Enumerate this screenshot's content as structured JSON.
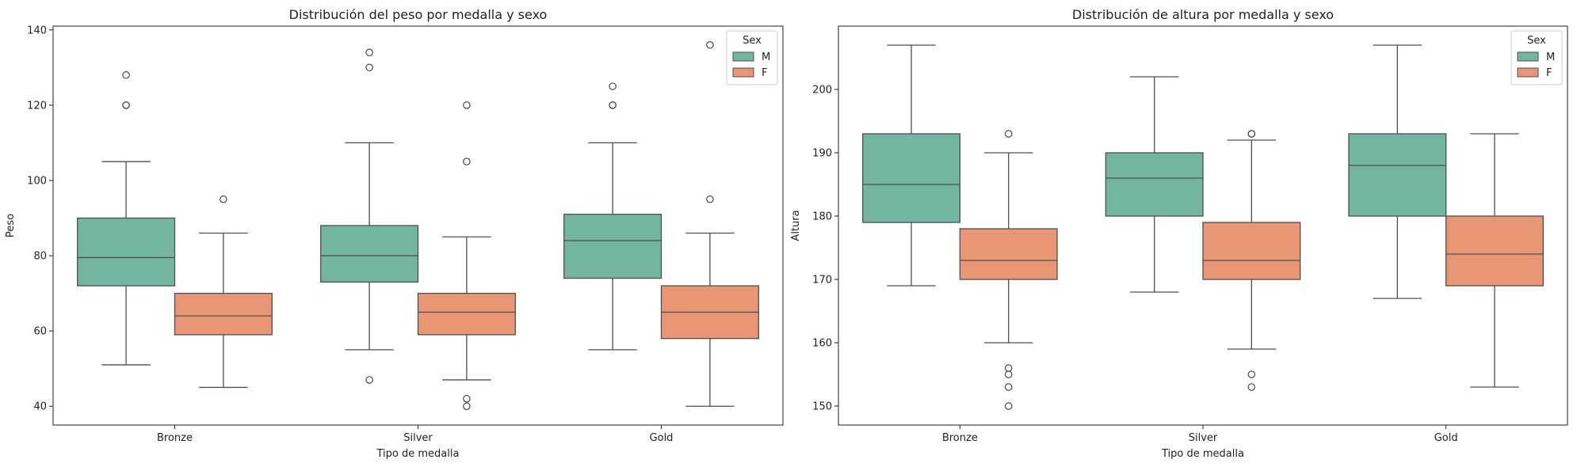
{
  "colors": {
    "male": "#72b6a1",
    "female": "#e99675",
    "line": "#4f4f4f",
    "frame": "#222222"
  },
  "chart_data": [
    {
      "type": "box",
      "title": "Distribución del peso por medalla y sexo",
      "xlabel": "Tipo de medalla",
      "ylabel": "Peso",
      "categories": [
        "Bronze",
        "Silver",
        "Gold"
      ],
      "ylim": [
        35,
        141
      ],
      "yticks": [
        40,
        60,
        80,
        100,
        120,
        140
      ],
      "legend": {
        "title": "Sex",
        "position": "top-right",
        "entries": [
          "M",
          "F"
        ]
      },
      "series": [
        {
          "name": "M",
          "boxes": [
            {
              "category": "Bronze",
              "whisker_low": 51,
              "q1": 72,
              "median": 79.5,
              "q3": 90,
              "whisker_high": 105,
              "outliers": [
                120,
                120,
                128
              ]
            },
            {
              "category": "Silver",
              "whisker_low": 55,
              "q1": 73,
              "median": 80,
              "q3": 88,
              "whisker_high": 110,
              "outliers": [
                47,
                130,
                134
              ]
            },
            {
              "category": "Gold",
              "whisker_low": 55,
              "q1": 74,
              "median": 84,
              "q3": 91,
              "whisker_high": 110,
              "outliers": [
                120,
                120,
                125
              ]
            }
          ]
        },
        {
          "name": "F",
          "boxes": [
            {
              "category": "Bronze",
              "whisker_low": 45,
              "q1": 59,
              "median": 64,
              "q3": 70,
              "whisker_high": 86,
              "outliers": [
                95
              ]
            },
            {
              "category": "Silver",
              "whisker_low": 47,
              "q1": 59,
              "median": 65,
              "q3": 70,
              "whisker_high": 85,
              "outliers": [
                40,
                42,
                105,
                120
              ]
            },
            {
              "category": "Gold",
              "whisker_low": 40,
              "q1": 58,
              "median": 65,
              "q3": 72,
              "whisker_high": 86,
              "outliers": [
                95,
                136
              ]
            }
          ]
        }
      ]
    },
    {
      "type": "box",
      "title": "Distribución de altura por medalla y sexo",
      "xlabel": "Tipo de medalla",
      "ylabel": "Altura",
      "categories": [
        "Bronze",
        "Silver",
        "Gold"
      ],
      "ylim": [
        147,
        210
      ],
      "yticks": [
        150,
        160,
        170,
        180,
        190,
        200
      ],
      "legend": {
        "title": "Sex",
        "position": "top-right",
        "entries": [
          "M",
          "F"
        ]
      },
      "series": [
        {
          "name": "M",
          "boxes": [
            {
              "category": "Bronze",
              "whisker_low": 169,
              "q1": 179,
              "median": 185,
              "q3": 193,
              "whisker_high": 207,
              "outliers": []
            },
            {
              "category": "Silver",
              "whisker_low": 168,
              "q1": 180,
              "median": 186,
              "q3": 190,
              "whisker_high": 202,
              "outliers": []
            },
            {
              "category": "Gold",
              "whisker_low": 167,
              "q1": 180,
              "median": 188,
              "q3": 193,
              "whisker_high": 207,
              "outliers": []
            }
          ]
        },
        {
          "name": "F",
          "boxes": [
            {
              "category": "Bronze",
              "whisker_low": 160,
              "q1": 170,
              "median": 173,
              "q3": 178,
              "whisker_high": 190,
              "outliers": [
                150,
                153,
                155,
                156,
                193
              ]
            },
            {
              "category": "Silver",
              "whisker_low": 159,
              "q1": 170,
              "median": 173,
              "q3": 179,
              "whisker_high": 192,
              "outliers": [
                153,
                155,
                193,
                193
              ]
            },
            {
              "category": "Gold",
              "whisker_low": 153,
              "q1": 169,
              "median": 174,
              "q3": 180,
              "whisker_high": 193,
              "outliers": []
            }
          ]
        }
      ]
    }
  ]
}
